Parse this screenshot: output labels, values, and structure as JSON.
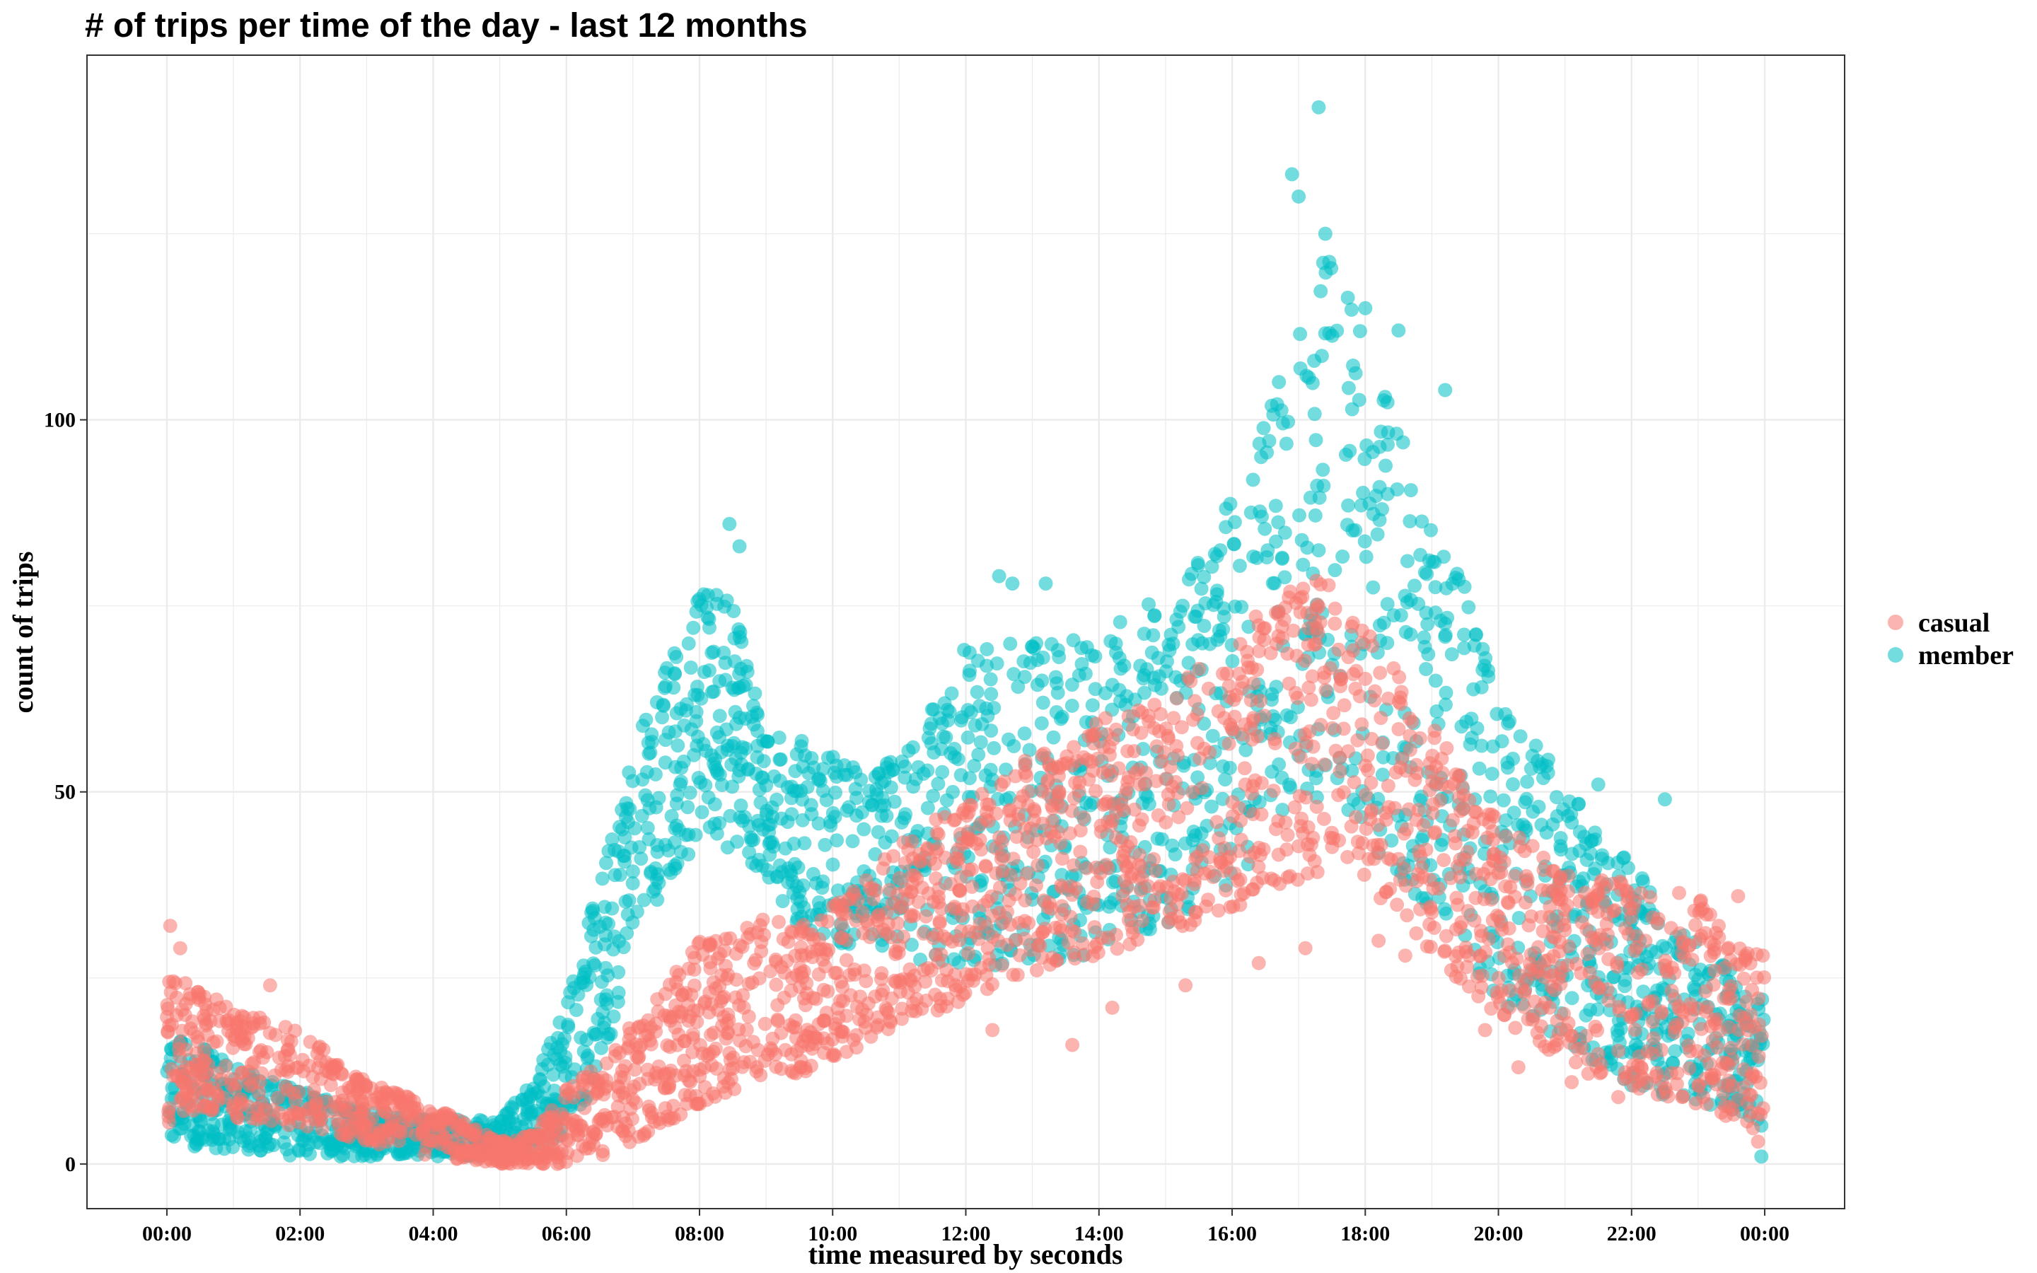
{
  "chart_data": {
    "type": "scatter",
    "title": "# of trips per time of the day - last 12 months",
    "xlabel": "time measured by seconds",
    "ylabel": "count of trips",
    "x_ticks": [
      "00:00",
      "02:00",
      "04:00",
      "06:00",
      "08:00",
      "10:00",
      "12:00",
      "14:00",
      "16:00",
      "18:00",
      "20:00",
      "22:00",
      "00:00"
    ],
    "y_ticks": [
      "0",
      "50",
      "100"
    ],
    "xlim_hours": [
      -1.2,
      25.2
    ],
    "ylim": [
      -6,
      149
    ],
    "grid": true,
    "legend_position": "right",
    "series": [
      {
        "name": "casual",
        "color": "#F8766D",
        "hours": [
          0,
          0.5,
          1,
          2,
          3,
          4,
          5,
          5.5,
          6,
          6.5,
          7,
          7.5,
          8,
          8.5,
          9,
          9.5,
          10,
          11,
          12,
          13,
          14,
          15,
          16,
          16.5,
          17,
          17.5,
          18,
          18.5,
          19,
          20,
          21,
          22,
          23,
          24
        ],
        "low": [
          5,
          7,
          6,
          5,
          3,
          1,
          0,
          0,
          0,
          1,
          3,
          5,
          8,
          10,
          11,
          12,
          13,
          18,
          22,
          25,
          28,
          31,
          34,
          36,
          38,
          40,
          38,
          33,
          28,
          20,
          13,
          10,
          8,
          4
        ],
        "high": [
          25,
          24,
          21,
          18,
          11,
          8,
          3,
          4,
          10,
          14,
          19,
          25,
          30,
          32,
          33,
          32,
          35,
          43,
          49,
          55,
          60,
          64,
          70,
          75,
          80,
          78,
          72,
          66,
          59,
          46,
          40,
          38,
          36,
          28
        ],
        "outliers": [
          [
            0.05,
            32
          ],
          [
            0.2,
            29
          ],
          [
            1.55,
            24
          ],
          [
            12.4,
            18
          ],
          [
            13.6,
            16
          ],
          [
            14.2,
            21
          ],
          [
            15.3,
            24
          ],
          [
            16.4,
            27
          ],
          [
            17.1,
            29
          ],
          [
            18.2,
            30
          ],
          [
            18.6,
            28
          ],
          [
            19.8,
            18
          ],
          [
            20.3,
            13
          ],
          [
            21.1,
            11
          ],
          [
            21.8,
            9
          ],
          [
            23.6,
            36
          ],
          [
            23.9,
            3
          ]
        ]
      },
      {
        "name": "member",
        "color": "#00BFC4",
        "hours": [
          0,
          0.5,
          1,
          2,
          3,
          4,
          5,
          5.5,
          6,
          6.5,
          7,
          7.5,
          8,
          8.5,
          9,
          9.5,
          10,
          10.5,
          11,
          11.5,
          12,
          13,
          14,
          15,
          15.5,
          16,
          16.5,
          17,
          17.5,
          18,
          18.5,
          19,
          19.5,
          20,
          21,
          22,
          23,
          24
        ],
        "low": [
          3,
          2,
          2,
          1,
          1,
          1,
          1,
          2,
          4,
          12,
          28,
          38,
          42,
          42,
          38,
          32,
          30,
          28,
          27,
          27,
          26,
          27,
          28,
          32,
          34,
          38,
          42,
          48,
          50,
          44,
          38,
          32,
          28,
          22,
          16,
          10,
          8,
          5
        ],
        "high": [
          18,
          16,
          13,
          10,
          7,
          6,
          6,
          11,
          22,
          38,
          55,
          68,
          77,
          76,
          58,
          57,
          55,
          53,
          55,
          62,
          70,
          70,
          71,
          77,
          83,
          90,
          100,
          114,
          124,
          112,
          100,
          88,
          78,
          62,
          52,
          40,
          30,
          22
        ],
        "outliers": [
          [
            8.45,
            86
          ],
          [
            8.6,
            83
          ],
          [
            12.5,
            79
          ],
          [
            12.7,
            78
          ],
          [
            13.2,
            78
          ],
          [
            16.9,
            133
          ],
          [
            17.0,
            130
          ],
          [
            17.3,
            142
          ],
          [
            17.4,
            125
          ],
          [
            18.0,
            115
          ],
          [
            18.5,
            112
          ],
          [
            19.2,
            104
          ],
          [
            21.5,
            51
          ],
          [
            22.5,
            49
          ],
          [
            23.95,
            1
          ]
        ]
      }
    ]
  }
}
